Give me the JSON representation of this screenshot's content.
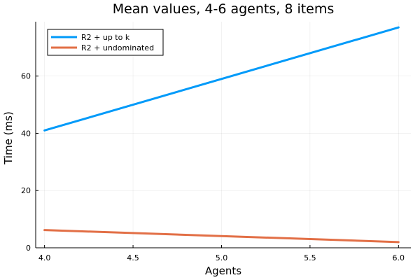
{
  "chart_data": {
    "type": "line",
    "title": "Mean values, 4-6 agents, 8 items",
    "xlabel": "Agents",
    "ylabel": "Time (ms)",
    "x": [
      4.0,
      6.0
    ],
    "xlim": [
      3.95,
      6.07
    ],
    "ylim": [
      0,
      79
    ],
    "xticks": [
      "4.0",
      "4.5",
      "5.0",
      "5.5",
      "6.0"
    ],
    "yticks": [
      "0",
      "20",
      "40",
      "60"
    ],
    "grid": true,
    "legend_position": "top-left",
    "series": [
      {
        "name": "R2 + up to k",
        "values": [
          41,
          77
        ],
        "color": "#009af9"
      },
      {
        "name": "R2 + undominated",
        "values": [
          6.2,
          2.0
        ],
        "color": "#e26f46"
      }
    ]
  }
}
